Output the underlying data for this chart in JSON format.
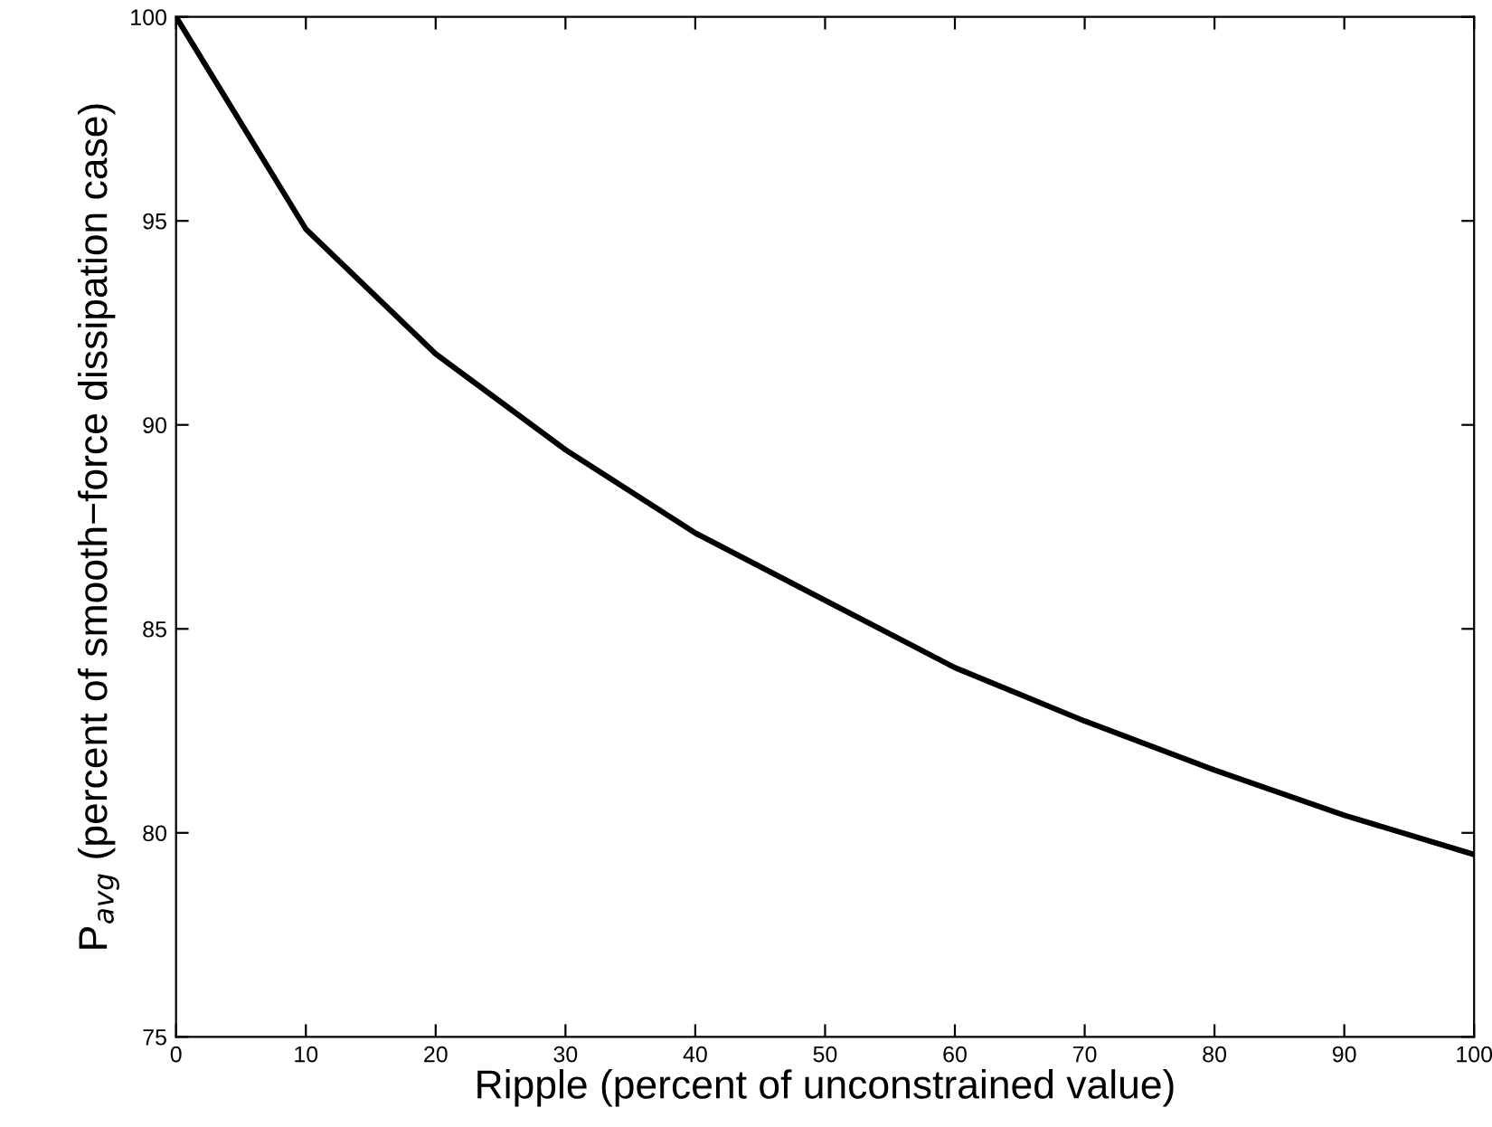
{
  "chart_data": {
    "type": "line",
    "xlabel": "Ripple (percent of unconstrained value)",
    "ylabel": "P$_{avg}$ (percent of smooth−force dissipation case)",
    "x": [
      0,
      10,
      20,
      30,
      40,
      50,
      60,
      70,
      80,
      90,
      100
    ],
    "series": [
      {
        "color": "#000000",
        "values": [
          100,
          94.8,
          91.74,
          89.39,
          87.35,
          85.7,
          84.05,
          82.74,
          81.54,
          80.43,
          79.47
        ]
      }
    ],
    "xlim": [
      0,
      100
    ],
    "xticks": [
      0,
      10,
      20,
      30,
      40,
      50,
      60,
      70,
      80,
      90,
      100
    ],
    "ylim": [
      75,
      100
    ],
    "yticks": [
      75,
      80,
      85,
      90,
      95,
      100
    ],
    "grid": false,
    "legend": false,
    "marker": "none",
    "line_style": "solid"
  }
}
